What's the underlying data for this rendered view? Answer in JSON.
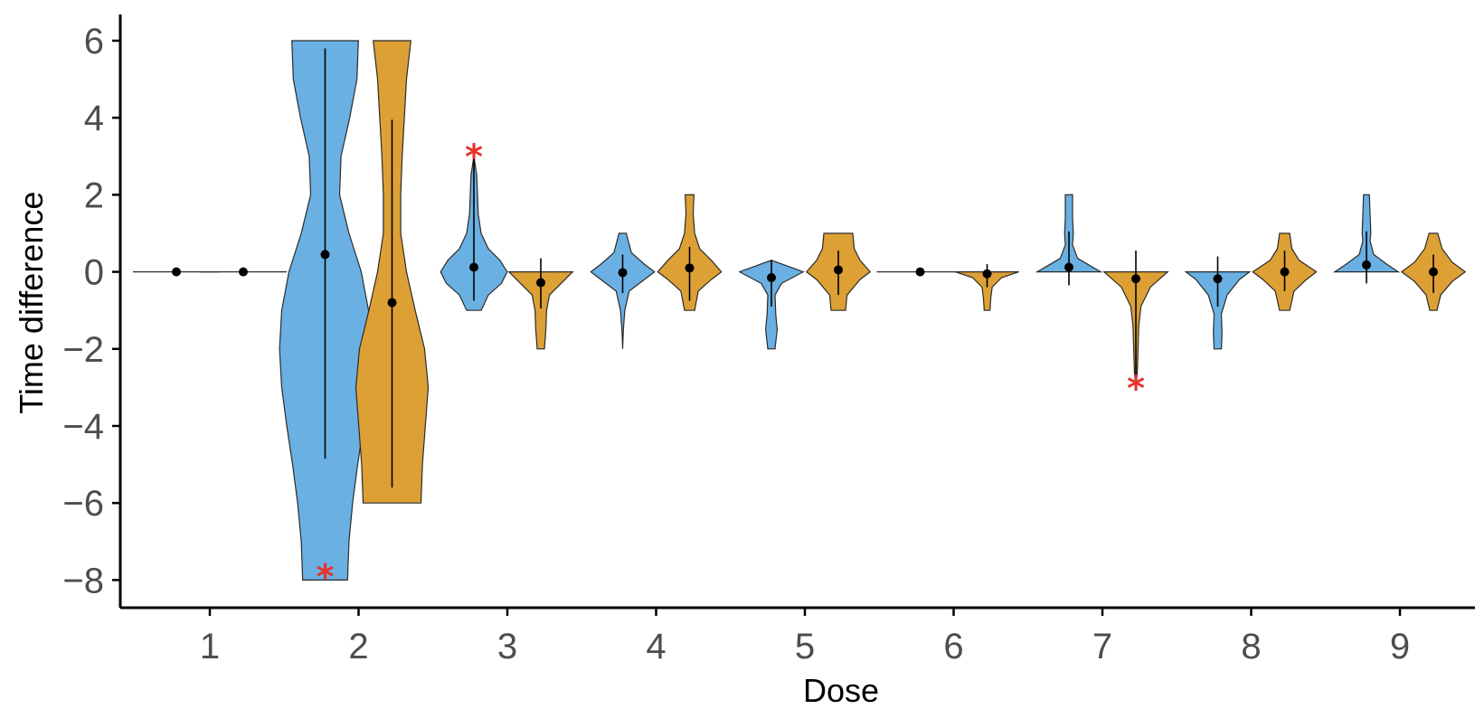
{
  "chart_data": {
    "type": "violin",
    "xlabel": "Dose",
    "ylabel": "Time difference",
    "ylim": [
      -8.6,
      6.6
    ],
    "y_ticks": [
      6,
      4,
      2,
      0,
      -2,
      -4,
      -6,
      -8
    ],
    "y_tick_labels": [
      "6",
      "4",
      "2",
      "0",
      "−2",
      "−4",
      "−6",
      "−8"
    ],
    "categories": [
      "1",
      "2",
      "3",
      "4",
      "5",
      "6",
      "7",
      "8",
      "9"
    ],
    "grid": false,
    "legend": "none",
    "colors": {
      "group_a": "#6ab0e3",
      "group_b": "#dda035",
      "significance": "#e8322a"
    },
    "significance_marker": "*",
    "violins": [
      {
        "dose": "1",
        "group": "a",
        "median": 0,
        "lower": 0,
        "upper": 0,
        "profile": [
          [
            0,
            0.6
          ]
        ],
        "sig": false
      },
      {
        "dose": "1",
        "group": "b",
        "median": 0,
        "lower": 0,
        "upper": 0,
        "profile": [
          [
            0,
            0.6
          ]
        ],
        "sig": false
      },
      {
        "dose": "2",
        "group": "a",
        "median": 0.45,
        "lower": -4.85,
        "upper": 5.8,
        "profile": [
          [
            -8,
            0.31
          ],
          [
            -7,
            0.33
          ],
          [
            -6,
            0.38
          ],
          [
            -5,
            0.45
          ],
          [
            -4,
            0.53
          ],
          [
            -3,
            0.6
          ],
          [
            -2,
            0.63
          ],
          [
            -1,
            0.6
          ],
          [
            0,
            0.5
          ],
          [
            1,
            0.33
          ],
          [
            2,
            0.2
          ],
          [
            3,
            0.22
          ],
          [
            4,
            0.34
          ],
          [
            5,
            0.44
          ],
          [
            6,
            0.46
          ]
        ],
        "sig": true,
        "sig_y": -7.85
      },
      {
        "dose": "2",
        "group": "b",
        "median": -0.8,
        "lower": -5.6,
        "upper": 3.95,
        "profile": [
          [
            -6,
            0.4
          ],
          [
            -5,
            0.42
          ],
          [
            -4,
            0.46
          ],
          [
            -3,
            0.5
          ],
          [
            -2,
            0.45
          ],
          [
            -1,
            0.32
          ],
          [
            0,
            0.2
          ],
          [
            1,
            0.12
          ],
          [
            2,
            0.12
          ],
          [
            3,
            0.14
          ],
          [
            4,
            0.17
          ],
          [
            5,
            0.2
          ],
          [
            6,
            0.26
          ]
        ],
        "sig": false
      },
      {
        "dose": "3",
        "group": "a",
        "median": 0.12,
        "lower": -0.75,
        "upper": 2.95,
        "profile": [
          [
            -1,
            0.1
          ],
          [
            -0.6,
            0.2
          ],
          [
            -0.3,
            0.38
          ],
          [
            0,
            0.46
          ],
          [
            0.3,
            0.36
          ],
          [
            0.6,
            0.2
          ],
          [
            1,
            0.1
          ],
          [
            1.5,
            0.06
          ],
          [
            2,
            0.05
          ],
          [
            2.5,
            0.04
          ],
          [
            3,
            0
          ]
        ],
        "sig": true,
        "sig_y": 3.05
      },
      {
        "dose": "3",
        "group": "b",
        "median": -0.28,
        "lower": -0.95,
        "upper": 0.35,
        "profile": [
          [
            -2,
            0.05
          ],
          [
            -1.5,
            0.07
          ],
          [
            -1,
            0.08
          ],
          [
            -0.6,
            0.12
          ],
          [
            -0.3,
            0.28
          ],
          [
            0,
            0.44
          ]
        ],
        "sig": false
      },
      {
        "dose": "4",
        "group": "a",
        "median": -0.02,
        "lower": -0.55,
        "upper": 0.45,
        "profile": [
          [
            -2,
            0
          ],
          [
            -1.5,
            0.01
          ],
          [
            -1,
            0.03
          ],
          [
            -0.5,
            0.09
          ],
          [
            -0.2,
            0.3
          ],
          [
            0,
            0.44
          ],
          [
            0.2,
            0.3
          ],
          [
            0.5,
            0.12
          ],
          [
            1,
            0.05
          ]
        ],
        "sig": false
      },
      {
        "dose": "4",
        "group": "b",
        "median": 0.1,
        "lower": -0.75,
        "upper": 0.65,
        "profile": [
          [
            -1,
            0.07
          ],
          [
            -0.5,
            0.12
          ],
          [
            -0.2,
            0.3
          ],
          [
            0,
            0.44
          ],
          [
            0.3,
            0.3
          ],
          [
            0.6,
            0.14
          ],
          [
            1,
            0.07
          ],
          [
            1.5,
            0.05
          ],
          [
            2,
            0.06
          ]
        ],
        "sig": false
      },
      {
        "dose": "5",
        "group": "a",
        "median": -0.15,
        "lower": -0.9,
        "upper": 0.3,
        "profile": [
          [
            -2,
            0.05
          ],
          [
            -1.5,
            0.08
          ],
          [
            -1.1,
            0.06
          ],
          [
            -0.6,
            0.05
          ],
          [
            -0.3,
            0.14
          ],
          [
            0,
            0.44
          ],
          [
            0.3,
            0
          ]
        ],
        "sig": false
      },
      {
        "dose": "5",
        "group": "b",
        "median": 0.05,
        "lower": -0.6,
        "upper": 0.55,
        "profile": [
          [
            -1,
            0.1
          ],
          [
            -0.6,
            0.12
          ],
          [
            -0.2,
            0.3
          ],
          [
            0,
            0.44
          ],
          [
            0.3,
            0.3
          ],
          [
            0.6,
            0.22
          ],
          [
            1,
            0.2
          ]
        ],
        "sig": false
      },
      {
        "dose": "6",
        "group": "a",
        "median": 0,
        "lower": 0,
        "upper": 0,
        "profile": [
          [
            0,
            0.6
          ]
        ],
        "sig": false
      },
      {
        "dose": "6",
        "group": "b",
        "median": -0.05,
        "lower": -0.4,
        "upper": 0.2,
        "profile": [
          [
            -1,
            0.04
          ],
          [
            -0.7,
            0.05
          ],
          [
            -0.4,
            0.07
          ],
          [
            -0.15,
            0.2
          ],
          [
            0,
            0.44
          ]
        ],
        "sig": false
      },
      {
        "dose": "7",
        "group": "a",
        "median": 0.12,
        "lower": -0.35,
        "upper": 1.05,
        "profile": [
          [
            0,
            0.44
          ],
          [
            0.15,
            0.3
          ],
          [
            0.35,
            0.12
          ],
          [
            0.7,
            0.05
          ],
          [
            1,
            0.06
          ],
          [
            1.4,
            0.05
          ],
          [
            2,
            0.05
          ]
        ],
        "sig": false
      },
      {
        "dose": "7",
        "group": "b",
        "median": -0.18,
        "lower": -2.8,
        "upper": 0.55,
        "profile": [
          [
            -3,
            0
          ],
          [
            -2.6,
            0.02
          ],
          [
            -2,
            0.03
          ],
          [
            -1.4,
            0.04
          ],
          [
            -0.9,
            0.07
          ],
          [
            -0.4,
            0.2
          ],
          [
            0,
            0.44
          ]
        ],
        "sig": true,
        "sig_y": -2.95
      },
      {
        "dose": "8",
        "group": "a",
        "median": -0.18,
        "lower": -0.9,
        "upper": 0.4,
        "profile": [
          [
            -2,
            0.05
          ],
          [
            -1.6,
            0.06
          ],
          [
            -1.1,
            0.05
          ],
          [
            -0.6,
            0.13
          ],
          [
            -0.2,
            0.3
          ],
          [
            0,
            0.44
          ]
        ],
        "sig": false
      },
      {
        "dose": "8",
        "group": "b",
        "median": 0,
        "lower": -0.5,
        "upper": 0.55,
        "profile": [
          [
            -1,
            0.07
          ],
          [
            -0.5,
            0.13
          ],
          [
            -0.2,
            0.3
          ],
          [
            0,
            0.44
          ],
          [
            0.3,
            0.2
          ],
          [
            0.6,
            0.1
          ],
          [
            1,
            0.07
          ]
        ],
        "sig": false
      },
      {
        "dose": "9",
        "group": "a",
        "median": 0.18,
        "lower": -0.3,
        "upper": 1.05,
        "profile": [
          [
            0,
            0.44
          ],
          [
            0.2,
            0.28
          ],
          [
            0.45,
            0.1
          ],
          [
            0.8,
            0.05
          ],
          [
            1,
            0.06
          ],
          [
            1.5,
            0.05
          ],
          [
            2,
            0.04
          ]
        ],
        "sig": false
      },
      {
        "dose": "9",
        "group": "b",
        "median": 0,
        "lower": -0.55,
        "upper": 0.45,
        "profile": [
          [
            -1,
            0.05
          ],
          [
            -0.6,
            0.1
          ],
          [
            -0.25,
            0.26
          ],
          [
            0,
            0.44
          ],
          [
            0.25,
            0.26
          ],
          [
            0.6,
            0.12
          ],
          [
            1,
            0.06
          ]
        ],
        "sig": false
      }
    ]
  }
}
